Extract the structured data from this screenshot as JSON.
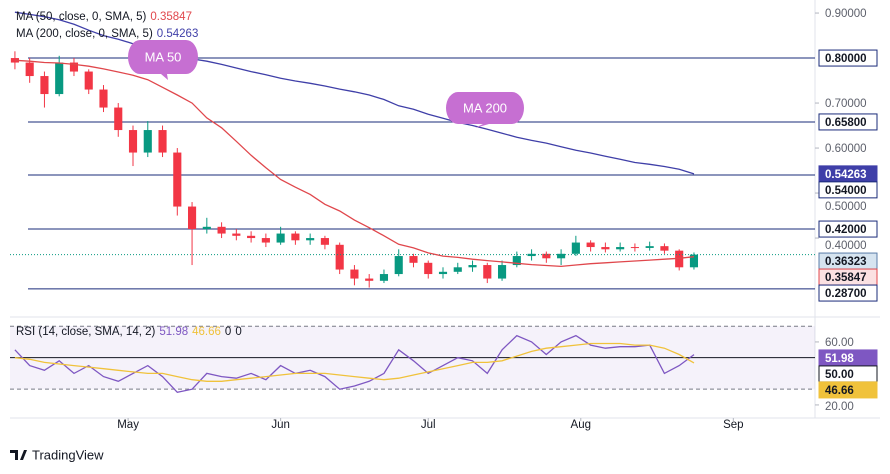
{
  "chart_data": [
    {
      "type": "candlestick",
      "x": [
        1,
        4,
        7,
        10,
        13,
        16,
        19,
        22,
        25,
        28,
        31,
        34,
        37,
        40,
        43,
        46,
        49,
        52,
        55,
        58,
        61,
        64,
        67,
        70,
        73,
        76,
        79,
        82,
        85,
        88,
        91,
        94,
        97,
        100,
        103,
        106,
        109,
        112,
        115,
        118,
        121,
        124,
        127,
        130,
        133,
        136,
        139
      ],
      "candles": [
        [
          0.8,
          0.815,
          0.775,
          0.79
        ],
        [
          0.79,
          0.8,
          0.745,
          0.76
        ],
        [
          0.76,
          0.77,
          0.69,
          0.72
        ],
        [
          0.72,
          0.805,
          0.715,
          0.79
        ],
        [
          0.79,
          0.8,
          0.76,
          0.77
        ],
        [
          0.77,
          0.775,
          0.72,
          0.73
        ],
        [
          0.73,
          0.74,
          0.68,
          0.69
        ],
        [
          0.69,
          0.7,
          0.625,
          0.64
        ],
        [
          0.64,
          0.65,
          0.56,
          0.59
        ],
        [
          0.59,
          0.66,
          0.58,
          0.64
        ],
        [
          0.64,
          0.65,
          0.58,
          0.59
        ],
        [
          0.59,
          0.6,
          0.45,
          0.47
        ],
        [
          0.47,
          0.48,
          0.34,
          0.42
        ],
        [
          0.42,
          0.445,
          0.41,
          0.425
        ],
        [
          0.425,
          0.435,
          0.4,
          0.41
        ],
        [
          0.41,
          0.42,
          0.395,
          0.405
        ],
        [
          0.405,
          0.415,
          0.39,
          0.4
        ],
        [
          0.4,
          0.41,
          0.38,
          0.39
        ],
        [
          0.39,
          0.425,
          0.385,
          0.41
        ],
        [
          0.41,
          0.415,
          0.385,
          0.395
        ],
        [
          0.395,
          0.41,
          0.385,
          0.4
        ],
        [
          0.4,
          0.405,
          0.375,
          0.385
        ],
        [
          0.385,
          0.39,
          0.32,
          0.33
        ],
        [
          0.33,
          0.34,
          0.295,
          0.31
        ],
        [
          0.31,
          0.32,
          0.29,
          0.305
        ],
        [
          0.305,
          0.33,
          0.3,
          0.32
        ],
        [
          0.32,
          0.375,
          0.315,
          0.36
        ],
        [
          0.36,
          0.365,
          0.335,
          0.345
        ],
        [
          0.345,
          0.35,
          0.31,
          0.32
        ],
        [
          0.32,
          0.335,
          0.31,
          0.325
        ],
        [
          0.325,
          0.345,
          0.32,
          0.335
        ],
        [
          0.335,
          0.35,
          0.325,
          0.34
        ],
        [
          0.34,
          0.345,
          0.3,
          0.31
        ],
        [
          0.31,
          0.35,
          0.305,
          0.34
        ],
        [
          0.34,
          0.37,
          0.335,
          0.36
        ],
        [
          0.36,
          0.375,
          0.35,
          0.365
        ],
        [
          0.365,
          0.37,
          0.345,
          0.355
        ],
        [
          0.355,
          0.375,
          0.34,
          0.365
        ],
        [
          0.365,
          0.405,
          0.36,
          0.39
        ],
        [
          0.39,
          0.395,
          0.37,
          0.38
        ],
        [
          0.38,
          0.39,
          0.368,
          0.375
        ],
        [
          0.375,
          0.39,
          0.37,
          0.38
        ],
        [
          0.38,
          0.388,
          0.37,
          0.378
        ],
        [
          0.378,
          0.392,
          0.372,
          0.382
        ],
        [
          0.382,
          0.388,
          0.365,
          0.372
        ],
        [
          0.372,
          0.375,
          0.328,
          0.335
        ],
        [
          0.335,
          0.368,
          0.33,
          0.36323
        ]
      ],
      "up_color": "#089981",
      "down_color": "#f23645",
      "series": [
        {
          "name": "MA (50, close, 0, SMA, 5)",
          "color": "#e0474c",
          "values": [
            0.795,
            0.793,
            0.79,
            0.789,
            0.786,
            0.782,
            0.776,
            0.769,
            0.762,
            0.752,
            0.735,
            0.718,
            0.7,
            0.667,
            0.645,
            0.615,
            0.584,
            0.556,
            0.53,
            0.513,
            0.497,
            0.475,
            0.46,
            0.44,
            0.423,
            0.405,
            0.386,
            0.378,
            0.367,
            0.36,
            0.357,
            0.353,
            0.35,
            0.347,
            0.344,
            0.341,
            0.339,
            0.337,
            0.34,
            0.343,
            0.345,
            0.347,
            0.349,
            0.351,
            0.353,
            0.355,
            0.35847
          ]
        },
        {
          "name": "MA (200, close, 0, SMA, 5)",
          "color": "#3f3fa8",
          "values": [
            0.902,
            0.897,
            0.892,
            0.885,
            0.875,
            0.862,
            0.85,
            0.842,
            0.832,
            0.824,
            0.815,
            0.805,
            0.798,
            0.793,
            0.786,
            0.778,
            0.77,
            0.763,
            0.755,
            0.749,
            0.744,
            0.738,
            0.731,
            0.725,
            0.718,
            0.708,
            0.694,
            0.686,
            0.675,
            0.666,
            0.657,
            0.65,
            0.642,
            0.633,
            0.624,
            0.617,
            0.611,
            0.603,
            0.595,
            0.589,
            0.582,
            0.575,
            0.568,
            0.564,
            0.559,
            0.553,
            0.54263
          ]
        }
      ],
      "levels": [
        {
          "value": 0.8,
          "label": "0.80000"
        },
        {
          "value": 0.658,
          "label": "0.65800"
        },
        {
          "value": 0.54,
          "label": "0.54000"
        },
        {
          "value": 0.42,
          "label": "0.42000"
        },
        {
          "value": 0.287,
          "label": "0.28700"
        }
      ],
      "level_color": "#1a2b7a",
      "annotations": [
        "MA 50",
        "MA 200"
      ],
      "xlim": [
        0,
        163.6
      ],
      "ylim": [
        0.229,
        0.929
      ],
      "yticks": [
        {
          "value": 0.9,
          "label": "0.90000"
        },
        {
          "value": 0.7,
          "label": "0.70000"
        },
        {
          "value": 0.6,
          "label": "0.60000"
        },
        {
          "value": 0.5,
          "label": "0.50000"
        },
        {
          "value": 0.4,
          "label": "0.40000"
        }
      ],
      "xticks": [
        {
          "value": 24,
          "label": "May"
        },
        {
          "value": 55,
          "label": "Jun"
        },
        {
          "value": 85,
          "label": "Jul"
        },
        {
          "value": 116,
          "label": "Aug"
        },
        {
          "value": 147,
          "label": "Sep"
        }
      ]
    },
    {
      "type": "line",
      "x": [
        1,
        4,
        7,
        10,
        13,
        16,
        19,
        22,
        25,
        28,
        31,
        34,
        37,
        40,
        43,
        46,
        49,
        52,
        55,
        58,
        61,
        64,
        67,
        70,
        73,
        76,
        79,
        82,
        85,
        88,
        91,
        94,
        97,
        100,
        103,
        106,
        109,
        112,
        115,
        118,
        121,
        124,
        127,
        130,
        133,
        136,
        139
      ],
      "series": [
        {
          "name": "RSI (14, close, SMA, 14, 2)",
          "color": "#7e57c2",
          "values": [
            55,
            45,
            42,
            48,
            40,
            45,
            38,
            35,
            40,
            45,
            38,
            28,
            30,
            40,
            38,
            37,
            40,
            36,
            45,
            40,
            42,
            38,
            30,
            32,
            35,
            40,
            55,
            48,
            40,
            45,
            50,
            48,
            40,
            55,
            64,
            60,
            52,
            60,
            64,
            58,
            56,
            57,
            57,
            58,
            40,
            45,
            51.98
          ]
        },
        {
          "name": "",
          "color": "#f0c23b",
          "values": [
            50,
            49,
            47,
            46,
            45,
            44,
            43,
            42,
            41,
            40,
            40,
            38,
            36,
            35,
            35,
            36,
            37,
            38,
            39,
            40,
            40,
            40,
            39,
            38,
            37,
            36,
            37,
            39,
            41,
            43,
            45,
            47,
            47,
            48,
            51,
            54,
            56,
            57,
            58,
            59,
            59,
            59,
            58,
            58,
            56,
            52,
            46.66
          ]
        }
      ],
      "extra_legend": [
        "0",
        "0"
      ],
      "levels": [
        {
          "value": 50,
          "label": "50.00"
        }
      ],
      "bands": [
        70,
        30
      ],
      "xlim": [
        0,
        163.6
      ],
      "ylim": [
        11.7,
        75.2
      ],
      "yticks": [
        {
          "value": 60,
          "label": "60.00"
        },
        {
          "value": 20,
          "label": "20.00"
        }
      ]
    }
  ],
  "branding": "TradingView"
}
